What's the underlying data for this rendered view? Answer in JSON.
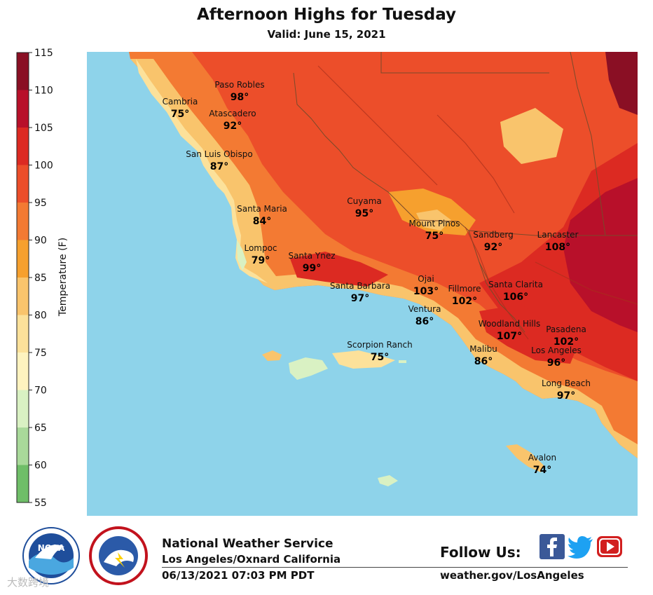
{
  "title": "Afternoon Highs for Tuesday",
  "subtitle": "Valid: June 15, 2021",
  "colorbar": {
    "label": "Temperature (F)",
    "min": 55,
    "max": 115,
    "ticks": [
      "115",
      "110",
      "105",
      "100",
      "95",
      "90",
      "85",
      "80",
      "75",
      "70",
      "65",
      "60",
      "55"
    ],
    "bands": [
      {
        "from": 110,
        "to": 115,
        "color": "#8a0f24"
      },
      {
        "from": 105,
        "to": 110,
        "color": "#b8102a"
      },
      {
        "from": 100,
        "to": 105,
        "color": "#dc2a22"
      },
      {
        "from": 95,
        "to": 100,
        "color": "#ec4e2a"
      },
      {
        "from": 90,
        "to": 95,
        "color": "#f37a33"
      },
      {
        "from": 85,
        "to": 90,
        "color": "#f6a02e"
      },
      {
        "from": 80,
        "to": 85,
        "color": "#f9c46c"
      },
      {
        "from": 75,
        "to": 80,
        "color": "#fce19a"
      },
      {
        "from": 70,
        "to": 75,
        "color": "#fef3bf"
      },
      {
        "from": 65,
        "to": 70,
        "color": "#d9f1c3"
      },
      {
        "from": 60,
        "to": 65,
        "color": "#a9d99a"
      },
      {
        "from": 55,
        "to": 60,
        "color": "#6fbe68"
      }
    ]
  },
  "colors": {
    "ocean": "#8ed3ea",
    "hot_inland": "#dc2a22",
    "very_hot": "#8a0f24",
    "warm": "#ec4e2a",
    "mild": "#f9c46c",
    "coastal": "#fce19a"
  },
  "cities": [
    {
      "name": "Paso Robles",
      "temp": "98°"
    },
    {
      "name": "Cambria",
      "temp": "75°"
    },
    {
      "name": "Atascadero",
      "temp": "92°"
    },
    {
      "name": "San Luis Obispo",
      "temp": "87°"
    },
    {
      "name": "Cuyama",
      "temp": "95°"
    },
    {
      "name": "Santa Maria",
      "temp": "84°"
    },
    {
      "name": "Mount Pinos",
      "temp": "75°"
    },
    {
      "name": "Sandberg",
      "temp": "92°"
    },
    {
      "name": "Lancaster",
      "temp": "108°"
    },
    {
      "name": "Lompoc",
      "temp": "79°"
    },
    {
      "name": "Santa Ynez",
      "temp": "99°"
    },
    {
      "name": "Ojai",
      "temp": "103°"
    },
    {
      "name": "Santa Barbara",
      "temp": "97°"
    },
    {
      "name": "Fillmore",
      "temp": "102°"
    },
    {
      "name": "Santa Clarita",
      "temp": "106°"
    },
    {
      "name": "Ventura",
      "temp": "86°"
    },
    {
      "name": "Woodland Hills",
      "temp": "107°"
    },
    {
      "name": "Pasadena",
      "temp": "102°"
    },
    {
      "name": "Scorpion Ranch",
      "temp": "75°"
    },
    {
      "name": "Malibu",
      "temp": "86°"
    },
    {
      "name": "Los Angeles",
      "temp": "96°"
    },
    {
      "name": "Long Beach",
      "temp": "97°"
    },
    {
      "name": "Avalon",
      "temp": "74°"
    }
  ],
  "footer": {
    "org": "National Weather Service",
    "office": "Los Angeles/Oxnard California",
    "timestamp": "06/13/2021 07:03 PM PDT",
    "follow": "Follow Us:",
    "website": "weather.gov/LosAngeles",
    "noaa_logo_text": "NOAA",
    "nws_logo_text": "NATIONAL WEATHER SERVICE",
    "watermark": "大数跨境",
    "social": [
      {
        "icon": "facebook-icon",
        "color": "#3b5998"
      },
      {
        "icon": "twitter-icon",
        "color": "#1da1f2"
      },
      {
        "icon": "youtube-icon",
        "color": "#d21f1f"
      }
    ]
  }
}
